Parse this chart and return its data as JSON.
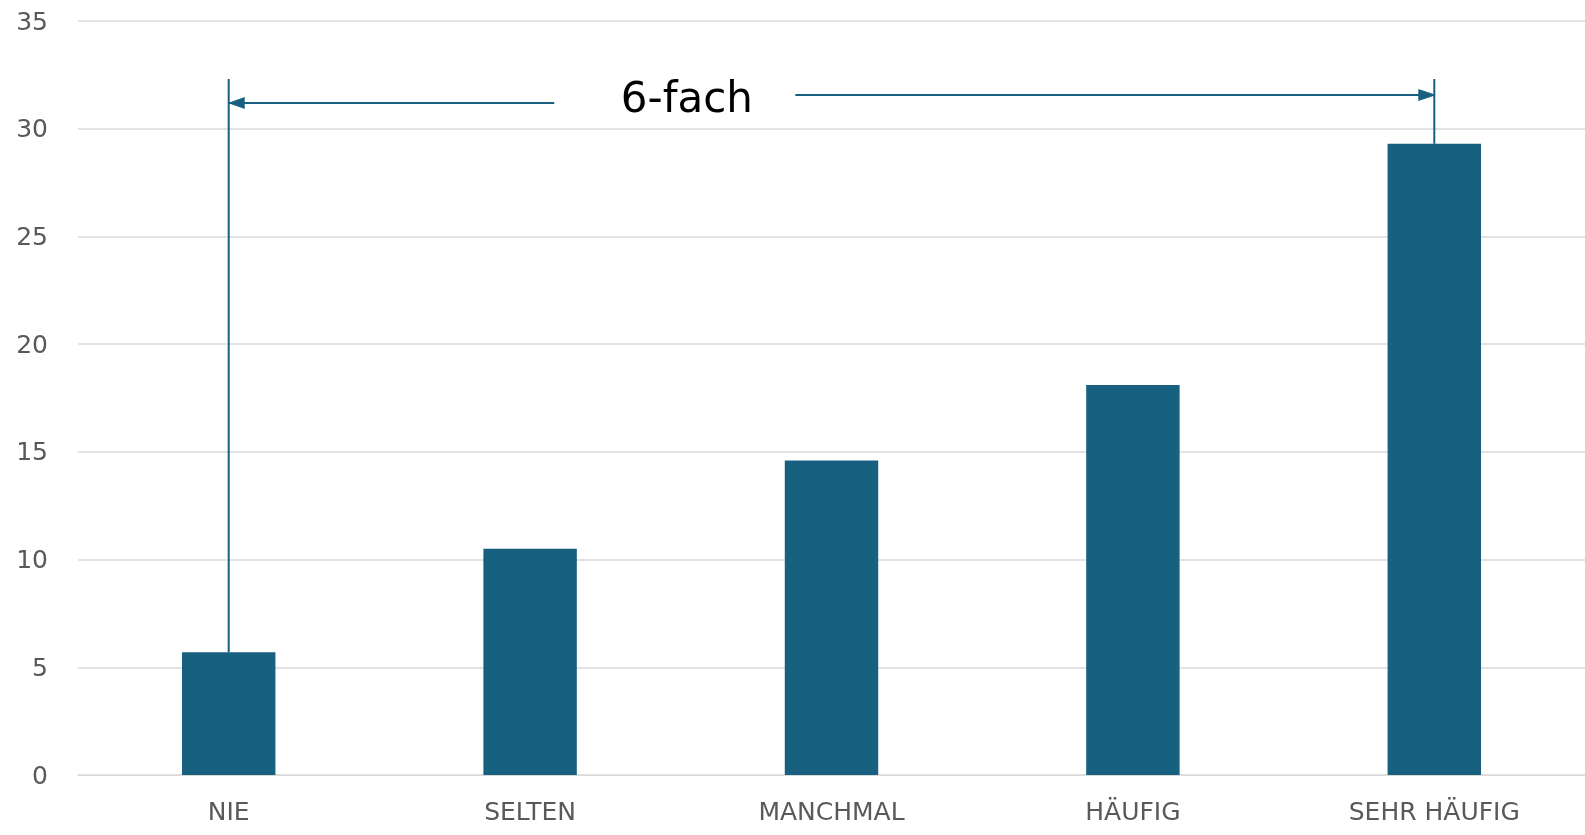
{
  "chart_data": {
    "type": "bar",
    "categories": [
      "NIE",
      "SELTEN",
      "MANCHMAL",
      "HÄUFIG",
      "SEHR HÄUFIG"
    ],
    "values": [
      5.7,
      10.5,
      14.6,
      18.1,
      29.3
    ],
    "color": "#17607f",
    "ylim": [
      0,
      35
    ],
    "yticks": [
      0,
      5,
      10,
      15,
      20,
      25,
      30,
      35
    ],
    "grid": "y",
    "annotations": [
      "6-fach"
    ]
  }
}
